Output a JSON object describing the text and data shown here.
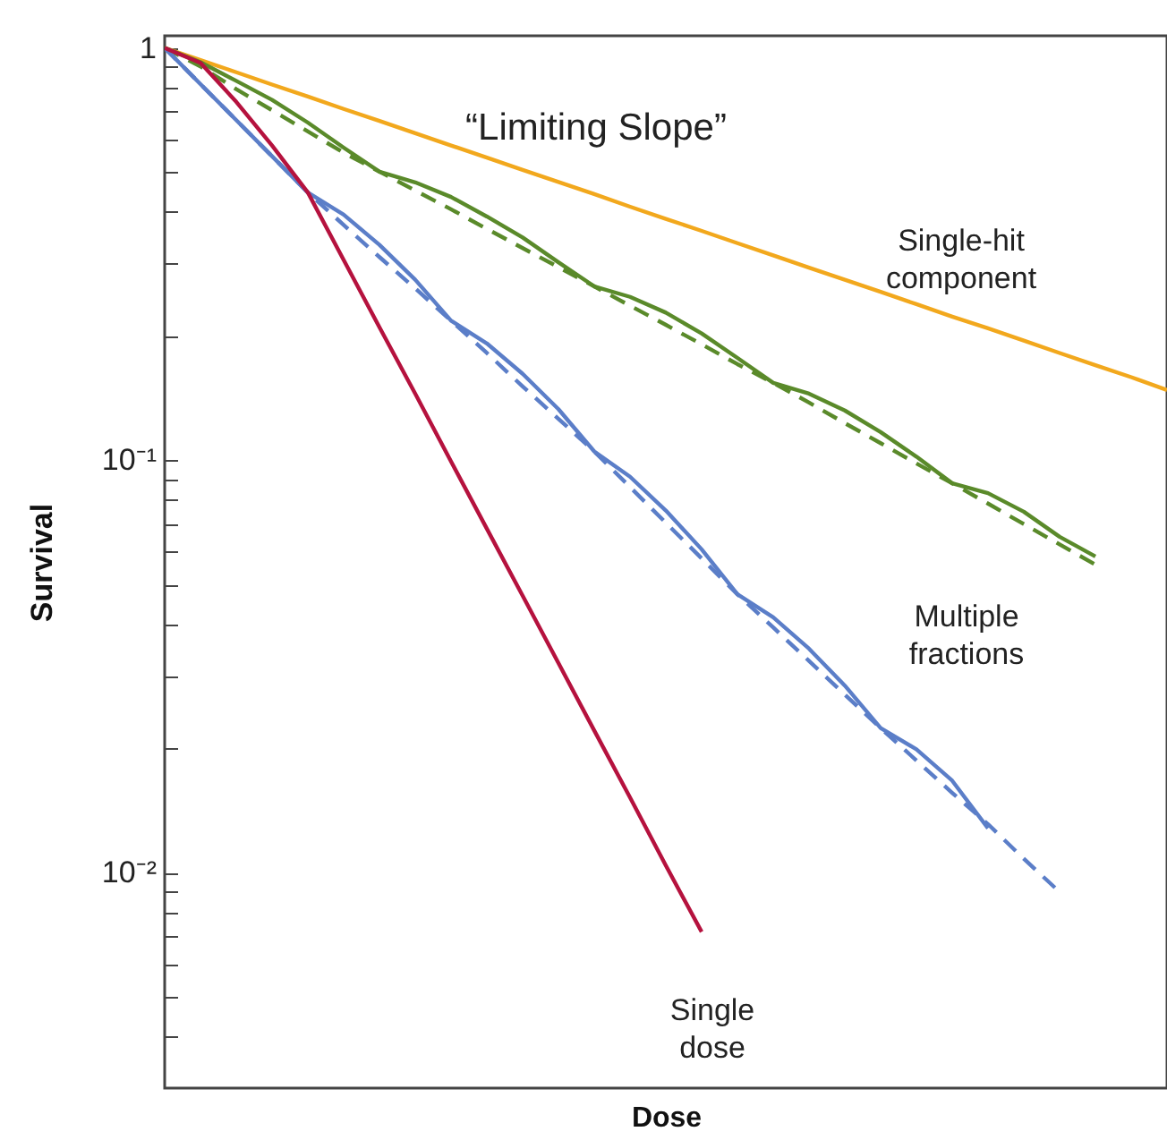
{
  "chart_data": {
    "type": "line",
    "xlabel": "Dose",
    "ylabel": "Survival",
    "log": "y",
    "grid": false,
    "marker": "none",
    "categories": [
      null,
      null,
      null,
      null,
      null,
      null,
      null,
      null,
      null,
      null,
      null,
      null,
      null,
      null,
      null,
      null,
      null,
      null,
      null,
      null,
      null,
      null,
      null,
      null,
      null,
      null,
      null,
      null,
      null
    ],
    "ylim": [
      0.003,
      1.07
    ],
    "yticks": [
      {
        "value": 1,
        "label": "1"
      },
      {
        "value": 0.9,
        "label": null
      },
      {
        "value": 0.8,
        "label": null
      },
      {
        "value": 0.7,
        "label": null
      },
      {
        "value": 0.6,
        "label": null
      },
      {
        "value": 0.5,
        "label": null
      },
      {
        "value": 0.4,
        "label": null
      },
      {
        "value": 0.3,
        "label": null
      },
      {
        "value": 0.2,
        "label": null
      },
      {
        "value": 0.1,
        "label": "10⁻¹"
      },
      {
        "value": 0.09,
        "label": null
      },
      {
        "value": 0.08,
        "label": null
      },
      {
        "value": 0.07,
        "label": null
      },
      {
        "value": 0.06,
        "label": null
      },
      {
        "value": 0.05,
        "label": null
      },
      {
        "value": 0.04,
        "label": null
      },
      {
        "value": 0.03,
        "label": null
      },
      {
        "value": 0.02,
        "label": null
      },
      {
        "value": 0.01,
        "label": "10⁻²"
      },
      {
        "value": 0.009,
        "label": null
      },
      {
        "value": 0.008,
        "label": null
      },
      {
        "value": 0.007,
        "label": null
      },
      {
        "value": 0.006,
        "label": null
      },
      {
        "value": 0.005,
        "label": null
      },
      {
        "value": 0.004,
        "label": null
      }
    ],
    "series": [
      {
        "color": "#f2a81d",
        "line_style": "solid",
        "values": [
          1,
          0.934,
          0.873,
          0.815,
          0.762,
          0.711,
          0.665,
          0.621,
          0.58,
          0.542,
          0.506,
          0.473,
          0.442,
          0.412,
          0.385,
          0.36,
          0.336,
          0.314,
          0.293,
          0.274,
          0.256,
          0.239,
          0.223,
          0.209,
          0.195,
          0.182,
          0.17,
          0.159,
          0.148
        ]
      },
      {
        "color": "#5a8a2a",
        "line_style": "dashed",
        "values": [
          1,
          0.902,
          0.794,
          0.706,
          0.627,
          0.557,
          0.501,
          0.451,
          0.406,
          0.364,
          0.327,
          0.294,
          0.264,
          0.237,
          0.213,
          0.191,
          0.171,
          0.154,
          0.138,
          0.123,
          0.11,
          0.0982,
          0.0879,
          0.0785,
          0.07,
          0.0625,
          0.0558,
          null,
          null
        ]
      },
      {
        "color": "#5a8a2a",
        "line_style": "solid",
        "values": [
          1,
          0.923,
          0.832,
          0.748,
          0.659,
          0.573,
          0.501,
          0.472,
          0.435,
          0.39,
          0.347,
          0.302,
          0.264,
          0.249,
          0.228,
          0.203,
          0.177,
          0.154,
          0.145,
          0.132,
          0.117,
          0.102,
          0.0879,
          0.0832,
          0.075,
          0.0652,
          0.0584,
          null,
          null
        ]
      },
      {
        "color": "#5b7ec8",
        "line_style": "dashed",
        "values": [
          1,
          0.817,
          0.668,
          0.546,
          0.446,
          0.372,
          0.311,
          0.261,
          0.218,
          0.182,
          0.151,
          0.126,
          0.105,
          0.0861,
          0.0705,
          0.0578,
          0.0473,
          0.0393,
          0.0326,
          0.027,
          0.0224,
          0.0187,
          0.0156,
          0.0131,
          0.0108,
          0.00897,
          null,
          null,
          null
        ]
      },
      {
        "color": "#5b7ec8",
        "line_style": "solid",
        "values": [
          1,
          0.817,
          0.668,
          0.546,
          0.446,
          0.394,
          0.333,
          0.274,
          0.218,
          0.192,
          0.162,
          0.133,
          0.105,
          0.0912,
          0.0755,
          0.0608,
          0.0473,
          0.0416,
          0.0349,
          0.0284,
          0.0224,
          0.0199,
          0.0167,
          0.0128,
          null,
          null,
          null,
          null,
          null
        ]
      },
      {
        "color": "#b5123e",
        "line_style": "solid",
        "values": [
          1,
          0.92,
          0.74,
          0.58,
          0.446,
          0.306,
          0.21,
          0.145,
          0.0993,
          0.0682,
          0.0469,
          0.0322,
          0.0221,
          0.0152,
          0.0104,
          0.00718,
          null,
          null,
          null,
          null,
          null,
          null,
          null,
          null,
          null,
          null,
          null,
          null,
          null
        ]
      }
    ],
    "annotations": [
      "“Limiting Slope”",
      "Single-hit\ncomponent",
      "Multiple\nfractions",
      "Single\ndose"
    ]
  }
}
